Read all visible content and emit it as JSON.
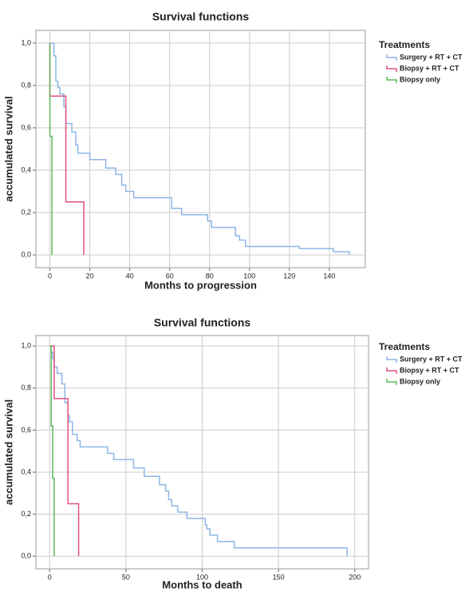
{
  "chart_data": [
    {
      "type": "step",
      "title": "Survival functions",
      "x_label": "Months to progression",
      "y_label": "accumulated survival",
      "legend_title": "Treatments",
      "legend": "right",
      "grid": true,
      "xlim": [
        -7,
        158
      ],
      "ylim": [
        -0.06,
        1.06
      ],
      "xticks": [
        0,
        20,
        40,
        60,
        80,
        100,
        120,
        140
      ],
      "yticks": [
        {
          "value": 0,
          "label": "0,0"
        },
        {
          "value": 0.2,
          "label": "0,2"
        },
        {
          "value": 0.4,
          "label": "0,4"
        },
        {
          "value": 0.6,
          "label": "0,6"
        },
        {
          "value": 0.8,
          "label": "0,8"
        },
        {
          "value": 1,
          "label": "1,0"
        }
      ],
      "series": [
        {
          "name": "Surgery + RT + CT",
          "color": "#8db6e6",
          "x": [
            0,
            2,
            3,
            4,
            5,
            7,
            8,
            11,
            13,
            14,
            20,
            28,
            33,
            36,
            38,
            42,
            61,
            66,
            79,
            81,
            93,
            95,
            98,
            125,
            142,
            150
          ],
          "values": [
            1.0,
            0.94,
            0.82,
            0.79,
            0.76,
            0.7,
            0.62,
            0.58,
            0.52,
            0.48,
            0.45,
            0.41,
            0.38,
            0.33,
            0.3,
            0.27,
            0.22,
            0.19,
            0.16,
            0.13,
            0.09,
            0.07,
            0.04,
            0.03,
            0.015,
            0.0
          ]
        },
        {
          "name": "Biopsy + RT + CT",
          "color": "#e0507a",
          "x": [
            0,
            0,
            8,
            17
          ],
          "values": [
            1.0,
            0.75,
            0.25,
            0.0
          ]
        },
        {
          "name": "Biopsy only",
          "color": "#5cb85c",
          "x": [
            0,
            0,
            1
          ],
          "values": [
            1.0,
            0.56,
            0.0
          ]
        }
      ]
    },
    {
      "type": "step",
      "title": "Survival functions",
      "x_label": "Months to death",
      "y_label": "accumulated survival",
      "legend_title": "Treatments",
      "legend": "right",
      "grid": true,
      "xlim": [
        -9,
        209
      ],
      "ylim": [
        -0.06,
        1.05
      ],
      "xticks": [
        0,
        50,
        100,
        150,
        200
      ],
      "yticks": [
        {
          "value": 0,
          "label": "0,0"
        },
        {
          "value": 0.2,
          "label": "0,2"
        },
        {
          "value": 0.4,
          "label": "0,4"
        },
        {
          "value": 0.6,
          "label": "0,6"
        },
        {
          "value": 0.8,
          "label": "0,8"
        },
        {
          "value": 1,
          "label": "1,0"
        }
      ],
      "series": [
        {
          "name": "Surgery + RT + CT",
          "color": "#8db6e6",
          "x": [
            0,
            1,
            2,
            3,
            5,
            8,
            10,
            12,
            13,
            15,
            18,
            20,
            38,
            42,
            55,
            62,
            72,
            76,
            78,
            80,
            84,
            90,
            102,
            103,
            105,
            110,
            121,
            195
          ],
          "values": [
            1.0,
            0.97,
            0.94,
            0.9,
            0.87,
            0.82,
            0.73,
            0.67,
            0.64,
            0.58,
            0.55,
            0.52,
            0.49,
            0.46,
            0.42,
            0.38,
            0.34,
            0.31,
            0.27,
            0.24,
            0.21,
            0.18,
            0.15,
            0.13,
            0.1,
            0.07,
            0.04,
            0.0
          ]
        },
        {
          "name": "Biopsy + RT + CT",
          "color": "#e0507a",
          "x": [
            0,
            3,
            12,
            19
          ],
          "values": [
            1.0,
            0.75,
            0.25,
            0.0
          ]
        },
        {
          "name": "Biopsy only",
          "color": "#5cb85c",
          "x": [
            0,
            1,
            2,
            3
          ],
          "values": [
            1.0,
            0.62,
            0.37,
            0.0
          ]
        }
      ]
    }
  ]
}
